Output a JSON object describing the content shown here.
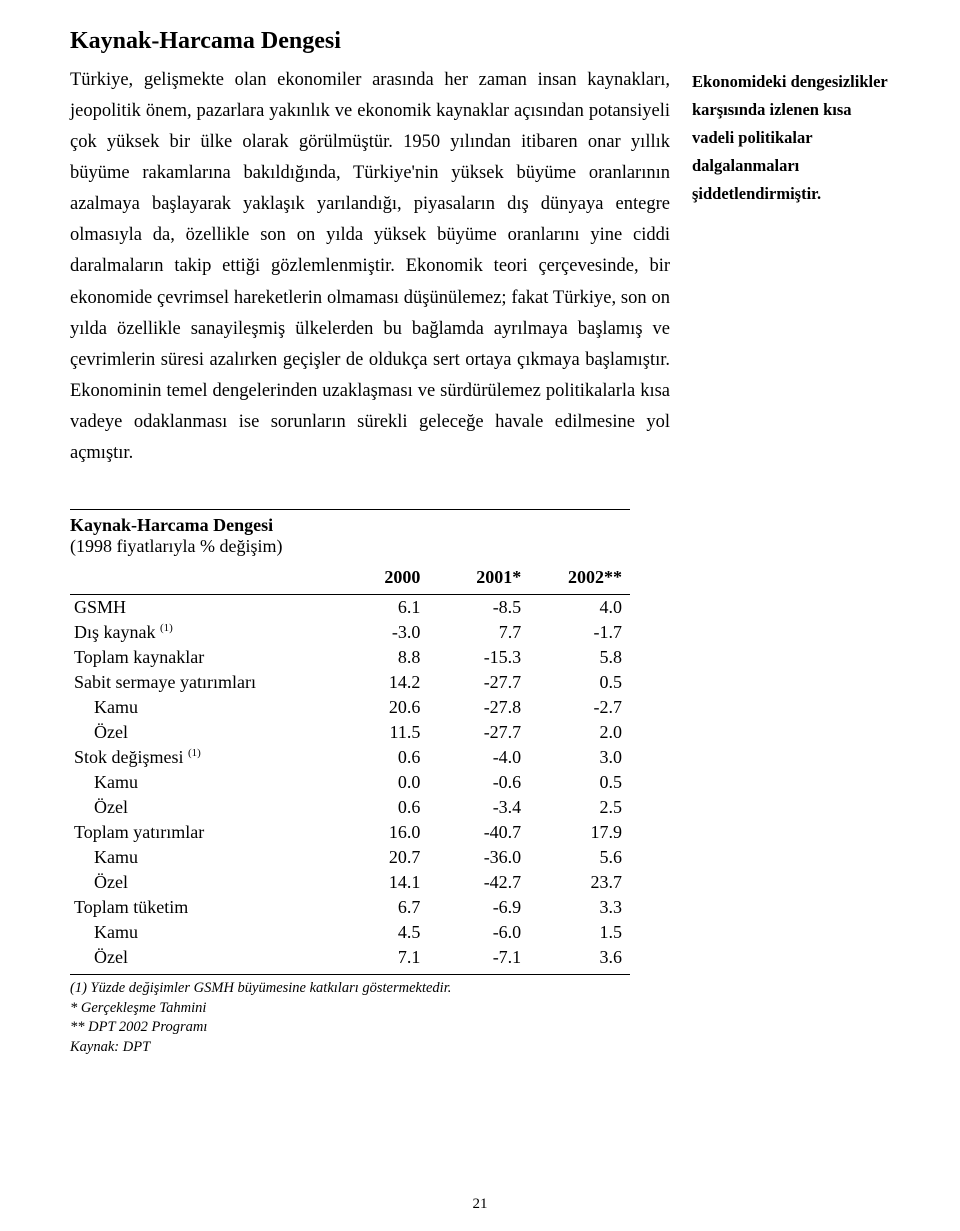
{
  "title": "Kaynak-Harcama Dengesi",
  "body": "Türkiye, gelişmekte olan ekonomiler arasında her zaman insan kaynakları, jeopolitik önem, pazarlara yakınlık ve ekonomik kaynaklar açısından potansiyeli çok yüksek bir ülke olarak görülmüştür. 1950 yılından itibaren onar yıllık büyüme rakamlarına bakıldığında, Türkiye'nin yüksek büyüme oranlarının azalmaya başlayarak yaklaşık yarılandığı, piyasaların dış dünyaya entegre olmasıyla da, özellikle son on yılda yüksek büyüme oranlarını yine ciddi daralmaların takip ettiği gözlemlenmiştir. Ekonomik teori çerçevesinde, bir ekonomide çevrimsel hareketlerin olmaması düşünülemez; fakat Türkiye, son on yılda özellikle sanayileşmiş ülkelerden bu bağlamda ayrılmaya başlamış ve çevrimlerin süresi azalırken geçişler de oldukça sert ortaya çıkmaya başlamıştır. Ekonominin temel dengelerinden uzaklaşması ve sürdürülemez politikalarla kısa vadeye odaklanması ise sorunların sürekli geleceğe havale edilmesine yol açmıştır.",
  "side_note": "Ekonomideki dengesizlikler karşısında izlenen kısa vadeli politikalar dalgalanmaları şiddetlendirmiştir.",
  "table": {
    "title": "Kaynak-Harcama Dengesi",
    "subtitle": "(1998 fiyatlarıyla % değişim)",
    "columns": [
      "2000",
      "2001*",
      "2002**"
    ],
    "label_width_pct": 46,
    "col_width_pct": 18,
    "rows": [
      {
        "label": "GSMH",
        "indent": false,
        "sup": "",
        "values": [
          "6.1",
          "-8.5",
          "4.0"
        ]
      },
      {
        "label": "Dış kaynak ",
        "indent": false,
        "sup": "(1)",
        "values": [
          "-3.0",
          "7.7",
          "-1.7"
        ]
      },
      {
        "label": "Toplam kaynaklar",
        "indent": false,
        "sup": "",
        "values": [
          "8.8",
          "-15.3",
          "5.8"
        ]
      },
      {
        "label": "Sabit sermaye yatırımları",
        "indent": false,
        "sup": "",
        "values": [
          "14.2",
          "-27.7",
          "0.5"
        ]
      },
      {
        "label": "Kamu",
        "indent": true,
        "sup": "",
        "values": [
          "20.6",
          "-27.8",
          "-2.7"
        ]
      },
      {
        "label": "Özel",
        "indent": true,
        "sup": "",
        "values": [
          "11.5",
          "-27.7",
          "2.0"
        ]
      },
      {
        "label": "Stok değişmesi ",
        "indent": false,
        "sup": "(1)",
        "values": [
          "0.6",
          "-4.0",
          "3.0"
        ]
      },
      {
        "label": "Kamu",
        "indent": true,
        "sup": "",
        "values": [
          "0.0",
          "-0.6",
          "0.5"
        ]
      },
      {
        "label": "Özel",
        "indent": true,
        "sup": "",
        "values": [
          "0.6",
          "-3.4",
          "2.5"
        ]
      },
      {
        "label": "Toplam yatırımlar",
        "indent": false,
        "sup": "",
        "values": [
          "16.0",
          "-40.7",
          "17.9"
        ]
      },
      {
        "label": "Kamu",
        "indent": true,
        "sup": "",
        "values": [
          "20.7",
          "-36.0",
          "5.6"
        ]
      },
      {
        "label": "Özel",
        "indent": true,
        "sup": "",
        "values": [
          "14.1",
          "-42.7",
          "23.7"
        ]
      },
      {
        "label": "Toplam tüketim",
        "indent": false,
        "sup": "",
        "values": [
          "6.7",
          "-6.9",
          "3.3"
        ]
      },
      {
        "label": "Kamu",
        "indent": true,
        "sup": "",
        "values": [
          "4.5",
          "-6.0",
          "1.5"
        ]
      },
      {
        "label": "Özel",
        "indent": true,
        "sup": "",
        "values": [
          "7.1",
          "-7.1",
          "3.6"
        ]
      }
    ],
    "footnotes": [
      "(1) Yüzde değişimler GSMH büyümesine katkıları göstermektedir.",
      "* Gerçekleşme Tahmini",
      "** DPT 2002 Programı",
      "Kaynak: DPT"
    ]
  },
  "page_number": "21"
}
